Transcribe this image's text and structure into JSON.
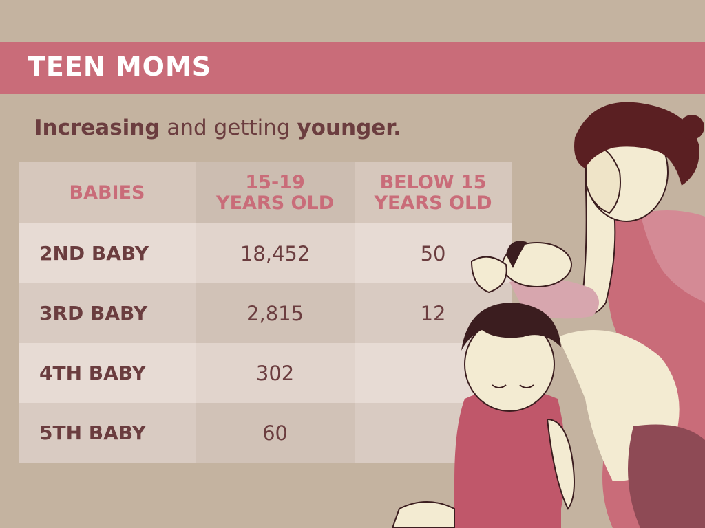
{
  "banner": {
    "title": "TEEN MOMS"
  },
  "subtitle": {
    "part1": "Increasing",
    "part2": " and getting ",
    "part3": "younger."
  },
  "colors": {
    "background": "#c4b3a0",
    "banner": "#c96c79",
    "accent_text": "#c96c79",
    "body_text": "#6b3d3f"
  },
  "chart_data": {
    "type": "table",
    "columns": [
      "BABIES",
      "15-19\nYEARS OLD",
      "BELOW 15\nYEARS OLD"
    ],
    "column_lines": [
      [
        "BABIES"
      ],
      [
        "15-19",
        "YEARS OLD"
      ],
      [
        "BELOW 15",
        "YEARS OLD"
      ]
    ],
    "rows": [
      {
        "label": "2ND BABY",
        "values": [
          "18,452",
          "50"
        ]
      },
      {
        "label": "3RD BABY",
        "values": [
          "2,815",
          "12"
        ]
      },
      {
        "label": "4TH BABY",
        "values": [
          "302",
          ""
        ]
      },
      {
        "label": "5TH BABY",
        "values": [
          "60",
          ""
        ]
      }
    ]
  }
}
